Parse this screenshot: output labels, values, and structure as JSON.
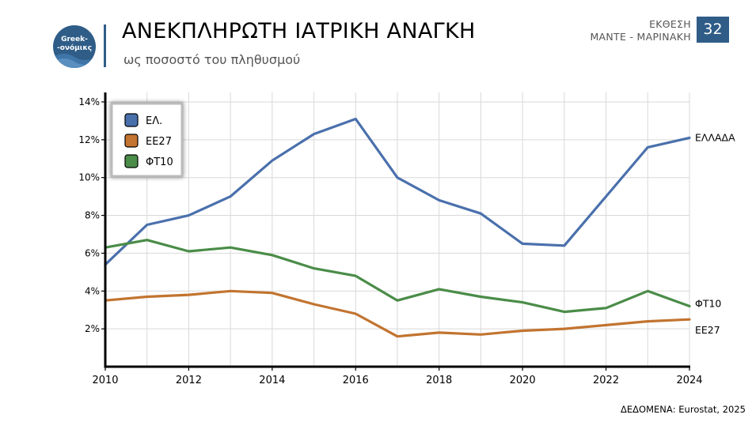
{
  "header": {
    "logo_line1": "Greek-",
    "logo_line2": "-ονόμικς",
    "title": "ΑΝΕΚΠΛΗΡΩΤΗ ΙΑΤΡΙΚΗ ΑΝΑΓΚΗ",
    "subtitle": "ως ποσοστό του πληθυσμού",
    "report_line1": "ΕΚΘΕΣΗ",
    "report_line2": "ΜΑΝΤΕ - ΜΑΡΙΝΑΚΗ",
    "page_number": "32"
  },
  "footer": {
    "source": "ΔΕΔΟΜΕΝΑ: Eurostat, 2025"
  },
  "chart_data": {
    "type": "line",
    "x": [
      2010,
      2011,
      2012,
      2013,
      2014,
      2015,
      2016,
      2017,
      2018,
      2019,
      2020,
      2021,
      2022,
      2023,
      2024
    ],
    "series": [
      {
        "name": "ΕΛ.",
        "end_label": "ΕΛΛΑΔΑ",
        "color": "#4a70ac",
        "values": [
          5.4,
          7.5,
          8.0,
          9.0,
          10.9,
          12.3,
          13.1,
          10.0,
          8.8,
          8.1,
          6.5,
          6.4,
          9.0,
          11.6,
          12.1
        ]
      },
      {
        "name": "ΕΕ27",
        "end_label": "ΕΕ27",
        "color": "#c27430",
        "values": [
          3.5,
          3.7,
          3.8,
          4.0,
          3.9,
          3.3,
          2.8,
          1.6,
          1.8,
          1.7,
          1.9,
          2.0,
          2.2,
          2.4,
          2.5
        ]
      },
      {
        "name": "ΦΤ10",
        "end_label": "ΦΤ10",
        "color": "#4a8c48",
        "values": [
          6.3,
          6.7,
          6.1,
          6.3,
          5.9,
          5.2,
          4.8,
          3.5,
          4.1,
          3.7,
          3.4,
          2.9,
          3.1,
          4.0,
          3.2
        ]
      }
    ],
    "y_ticks": [
      "2%",
      "4%",
      "6%",
      "8%",
      "10%",
      "12%",
      "14%"
    ],
    "y_tick_values": [
      2,
      4,
      6,
      8,
      10,
      12,
      14
    ],
    "x_ticks": [
      2010,
      2012,
      2014,
      2016,
      2018,
      2020,
      2022,
      2024
    ],
    "xlim": [
      2010,
      2024
    ],
    "ylim": [
      0,
      14.5
    ],
    "grid": true,
    "legend_position": "top-left"
  }
}
